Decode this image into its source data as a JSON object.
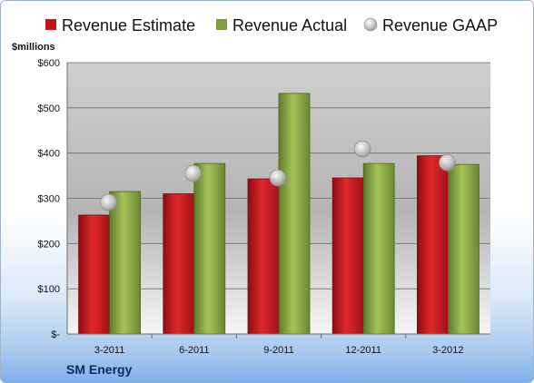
{
  "chart_data": {
    "type": "bar",
    "unit_label": "$millions",
    "company": "SM Energy",
    "categories": [
      "3-2011",
      "6-2011",
      "9-2011",
      "12-2011",
      "3-2012"
    ],
    "series": [
      {
        "name": "Revenue Estimate",
        "kind": "bar",
        "color": "#c0161c",
        "values": [
          263,
          310,
          343,
          345,
          394
        ]
      },
      {
        "name": "Revenue Actual",
        "kind": "bar",
        "color": "#7f9d3c",
        "values": [
          315,
          377,
          532,
          377,
          375
        ]
      },
      {
        "name": "Revenue GAAP",
        "kind": "marker",
        "color": "#b0b0b0",
        "values": [
          291,
          355,
          345,
          409,
          379
        ]
      }
    ],
    "ylim": [
      0,
      600
    ],
    "yticks": [
      {
        "value": 0,
        "label": "$-"
      },
      {
        "value": 100,
        "label": "$100"
      },
      {
        "value": 200,
        "label": "$200"
      },
      {
        "value": 300,
        "label": "$300"
      },
      {
        "value": 400,
        "label": "$400"
      },
      {
        "value": 500,
        "label": "$500"
      },
      {
        "value": 600,
        "label": "$600"
      }
    ],
    "grid": true,
    "legend": "top"
  }
}
